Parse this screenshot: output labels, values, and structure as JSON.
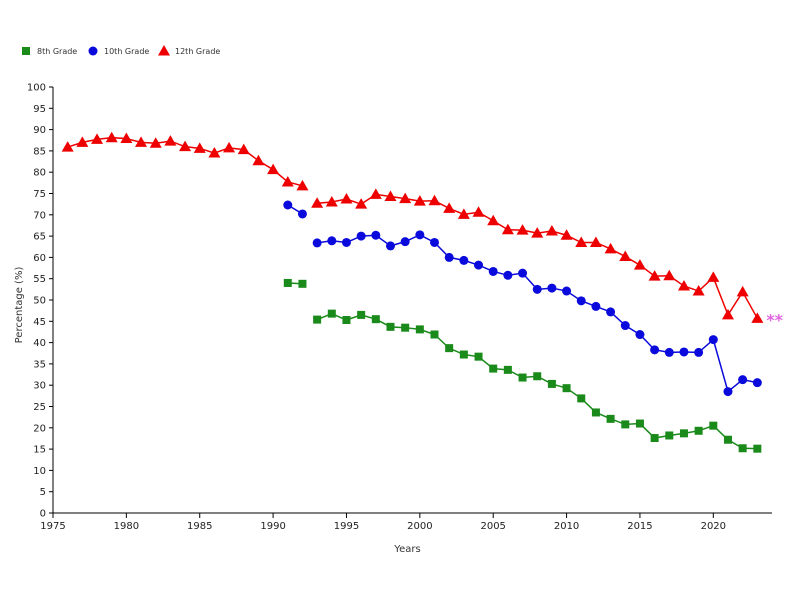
{
  "chart_data": {
    "type": "line",
    "xlabel": "Years",
    "ylabel": "Percentage (%)",
    "xlim": [
      1975,
      2024
    ],
    "ylim": [
      0,
      100
    ],
    "xticks": [
      1975,
      1980,
      1985,
      1990,
      1995,
      2000,
      2005,
      2010,
      2015,
      2020
    ],
    "yticks": [
      0,
      5,
      10,
      15,
      20,
      25,
      30,
      35,
      40,
      45,
      50,
      55,
      60,
      65,
      70,
      75,
      80,
      85,
      90,
      95,
      100
    ],
    "annotation": "**",
    "annotation_color": "#e066e0",
    "legend_position": "top-left",
    "series": [
      {
        "name": "8th Grade",
        "color": "#1a8a1a",
        "marker": "square",
        "segments": [
          [
            [
              1991,
              54.0
            ],
            [
              1992,
              53.8
            ]
          ],
          [
            [
              1993,
              45.4
            ],
            [
              1994,
              46.8
            ],
            [
              1995,
              45.3
            ],
            [
              1996,
              46.5
            ],
            [
              1997,
              45.5
            ],
            [
              1998,
              43.7
            ],
            [
              1999,
              43.5
            ],
            [
              2000,
              43.1
            ],
            [
              2001,
              41.9
            ],
            [
              2002,
              38.7
            ],
            [
              2003,
              37.2
            ],
            [
              2004,
              36.7
            ],
            [
              2005,
              33.9
            ],
            [
              2006,
              33.6
            ],
            [
              2007,
              31.8
            ],
            [
              2008,
              32.1
            ],
            [
              2009,
              30.3
            ],
            [
              2010,
              29.3
            ],
            [
              2011,
              26.9
            ],
            [
              2012,
              23.6
            ],
            [
              2013,
              22.1
            ],
            [
              2014,
              20.8
            ],
            [
              2015,
              21.0
            ],
            [
              2016,
              17.6
            ],
            [
              2017,
              18.2
            ],
            [
              2018,
              18.7
            ],
            [
              2019,
              19.3
            ],
            [
              2020,
              20.5
            ],
            [
              2021,
              17.2
            ],
            [
              2022,
              15.2
            ],
            [
              2023,
              15.1
            ]
          ]
        ]
      },
      {
        "name": "10th Grade",
        "color": "#0a0adc",
        "marker": "circle",
        "segments": [
          [
            [
              1991,
              72.3
            ],
            [
              1992,
              70.2
            ]
          ],
          [
            [
              1993,
              63.4
            ],
            [
              1994,
              63.9
            ],
            [
              1995,
              63.5
            ],
            [
              1996,
              65.0
            ],
            [
              1997,
              65.2
            ],
            [
              1998,
              62.7
            ],
            [
              1999,
              63.7
            ],
            [
              2000,
              65.3
            ],
            [
              2001,
              63.5
            ],
            [
              2002,
              60.0
            ],
            [
              2003,
              59.3
            ],
            [
              2004,
              58.2
            ],
            [
              2005,
              56.7
            ],
            [
              2006,
              55.8
            ],
            [
              2007,
              56.3
            ],
            [
              2008,
              52.5
            ],
            [
              2009,
              52.8
            ],
            [
              2010,
              52.1
            ],
            [
              2011,
              49.8
            ],
            [
              2012,
              48.5
            ],
            [
              2013,
              47.2
            ],
            [
              2014,
              44.0
            ],
            [
              2015,
              41.9
            ],
            [
              2016,
              38.3
            ],
            [
              2017,
              37.7
            ],
            [
              2018,
              37.8
            ],
            [
              2019,
              37.7
            ],
            [
              2020,
              40.7
            ],
            [
              2021,
              28.5
            ],
            [
              2022,
              31.3
            ],
            [
              2023,
              30.6
            ]
          ]
        ]
      },
      {
        "name": "12th Grade",
        "color": "#ee0000",
        "marker": "triangle",
        "segments": [
          [
            [
              1976,
              85.9
            ],
            [
              1977,
              87.0
            ],
            [
              1978,
              87.7
            ],
            [
              1979,
              88.1
            ],
            [
              1980,
              87.9
            ],
            [
              1981,
              87.0
            ],
            [
              1982,
              86.8
            ],
            [
              1983,
              87.3
            ],
            [
              1984,
              86.0
            ],
            [
              1985,
              85.6
            ],
            [
              1986,
              84.5
            ],
            [
              1987,
              85.7
            ],
            [
              1988,
              85.3
            ],
            [
              1989,
              82.7
            ],
            [
              1990,
              80.6
            ],
            [
              1991,
              77.7
            ],
            [
              1992,
              76.8
            ]
          ],
          [
            [
              1993,
              72.7
            ],
            [
              1994,
              73.0
            ],
            [
              1995,
              73.7
            ],
            [
              1996,
              72.5
            ],
            [
              1997,
              74.8
            ],
            [
              1998,
              74.3
            ],
            [
              1999,
              73.8
            ],
            [
              2000,
              73.2
            ],
            [
              2001,
              73.3
            ],
            [
              2002,
              71.5
            ],
            [
              2003,
              70.1
            ],
            [
              2004,
              70.6
            ],
            [
              2005,
              68.6
            ],
            [
              2006,
              66.5
            ],
            [
              2007,
              66.4
            ],
            [
              2008,
              65.7
            ],
            [
              2009,
              66.2
            ],
            [
              2010,
              65.2
            ],
            [
              2011,
              63.5
            ],
            [
              2012,
              63.5
            ],
            [
              2013,
              62.0
            ],
            [
              2014,
              60.2
            ],
            [
              2015,
              58.2
            ],
            [
              2016,
              55.6
            ],
            [
              2017,
              55.7
            ],
            [
              2018,
              53.3
            ],
            [
              2019,
              52.1
            ],
            [
              2020,
              55.3
            ],
            [
              2021,
              46.5
            ],
            [
              2022,
              51.9
            ],
            [
              2023,
              45.7
            ]
          ]
        ]
      }
    ]
  }
}
